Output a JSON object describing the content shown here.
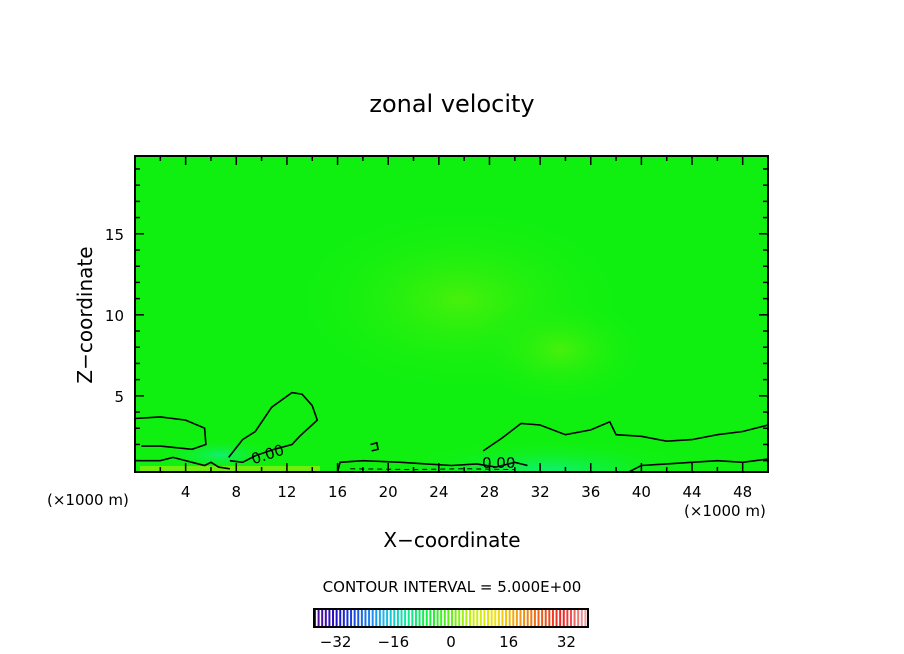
{
  "chart_data": {
    "type": "heatmap",
    "title": "zonal velocity",
    "xlabel": "X−coordinate",
    "ylabel": "Z−coordinate",
    "x_units": "(×1000 m)",
    "y_units": "(×1000 m)",
    "xlim": [
      0,
      50
    ],
    "ylim": [
      0.3,
      19.8
    ],
    "x_ticks": [
      4,
      8,
      12,
      16,
      20,
      24,
      28,
      32,
      36,
      40,
      44,
      48
    ],
    "x_tick_labels": [
      "4",
      "8",
      "12",
      "16",
      "20",
      "24",
      "28",
      "32",
      "36",
      "40",
      "44",
      "48"
    ],
    "y_ticks": [
      5,
      10,
      15
    ],
    "y_tick_labels": [
      "5",
      "10",
      "15"
    ],
    "contour_interval_label": "CONTOUR INTERVAL = 5.000E+00",
    "contour_interval": 5.0,
    "contour_labels": [
      "0.00",
      "0.00"
    ],
    "colorbar": {
      "min": -38,
      "max": 38,
      "ticks": [
        -32,
        -16,
        0,
        16,
        32
      ],
      "tick_labels": [
        "−32",
        "−16",
        "0",
        "16",
        "32"
      ],
      "colors": [
        "#5a0a9a",
        "#1a10c8",
        "#1a60e8",
        "#1ab4f0",
        "#10e8a0",
        "#10f040",
        "#60f010",
        "#c8f010",
        "#f0e010",
        "#f0a010",
        "#f06018",
        "#f02020",
        "#f0a0a0"
      ]
    },
    "field_colors": {
      "background": "#10f010",
      "positive_region": "#40f010",
      "negative_region": "#10f060"
    },
    "zero_contours": [
      {
        "name": "contour-left-blob",
        "points": [
          [
            0,
            3.6
          ],
          [
            2,
            3.7
          ],
          [
            4,
            3.5
          ],
          [
            5.5,
            3.0
          ],
          [
            5.6,
            2.0
          ],
          [
            4.5,
            1.7
          ],
          [
            2,
            1.9
          ],
          [
            0.5,
            1.9
          ]
        ]
      },
      {
        "name": "contour-left-base",
        "points": [
          [
            0,
            1.0
          ],
          [
            2,
            1.0
          ],
          [
            3,
            1.2
          ],
          [
            4.5,
            0.9
          ],
          [
            5.5,
            0.7
          ],
          [
            6,
            0.9
          ],
          [
            6.6,
            0.6
          ],
          [
            7.5,
            0.5
          ]
        ]
      },
      {
        "name": "contour-hill-12",
        "points": [
          [
            7.4,
            1.2
          ],
          [
            8.5,
            2.3
          ],
          [
            9.5,
            2.8
          ],
          [
            10.8,
            4.3
          ],
          [
            12.4,
            5.2
          ],
          [
            13.2,
            5.1
          ],
          [
            14,
            4.4
          ],
          [
            14.4,
            3.5
          ],
          [
            13,
            2.5
          ],
          [
            12.4,
            2.0
          ],
          [
            11,
            1.7
          ],
          [
            9.5,
            1.3
          ],
          [
            8.5,
            0.9
          ],
          [
            7.5,
            1.0
          ]
        ]
      },
      {
        "name": "contour-small-loop-18",
        "points": [
          [
            18.6,
            2.0
          ],
          [
            19.1,
            2.1
          ],
          [
            19.2,
            1.7
          ],
          [
            18.7,
            1.6
          ]
        ]
      },
      {
        "name": "contour-right-band",
        "points": [
          [
            27.5,
            1.6
          ],
          [
            29,
            2.4
          ],
          [
            30.5,
            3.3
          ],
          [
            32,
            3.2
          ],
          [
            34,
            2.6
          ],
          [
            36,
            2.9
          ],
          [
            37.5,
            3.4
          ],
          [
            38,
            2.6
          ],
          [
            40,
            2.5
          ],
          [
            42,
            2.2
          ],
          [
            44,
            2.3
          ],
          [
            46,
            2.6
          ],
          [
            48,
            2.8
          ],
          [
            50,
            3.2
          ]
        ]
      },
      {
        "name": "contour-bottom-right",
        "points": [
          [
            16,
            0.3
          ],
          [
            16.2,
            0.9
          ],
          [
            18,
            1.0
          ],
          [
            21,
            0.9
          ],
          [
            23,
            0.8
          ],
          [
            25,
            0.7
          ],
          [
            27,
            0.8
          ],
          [
            28.5,
            0.6
          ],
          [
            30,
            0.9
          ],
          [
            31,
            0.7
          ]
        ]
      },
      {
        "name": "contour-far-right-base",
        "points": [
          [
            39,
            0.3
          ],
          [
            40,
            0.7
          ],
          [
            42,
            0.8
          ],
          [
            44,
            0.9
          ],
          [
            46,
            1.0
          ],
          [
            48,
            0.9
          ],
          [
            50,
            1.1
          ]
        ]
      }
    ]
  }
}
